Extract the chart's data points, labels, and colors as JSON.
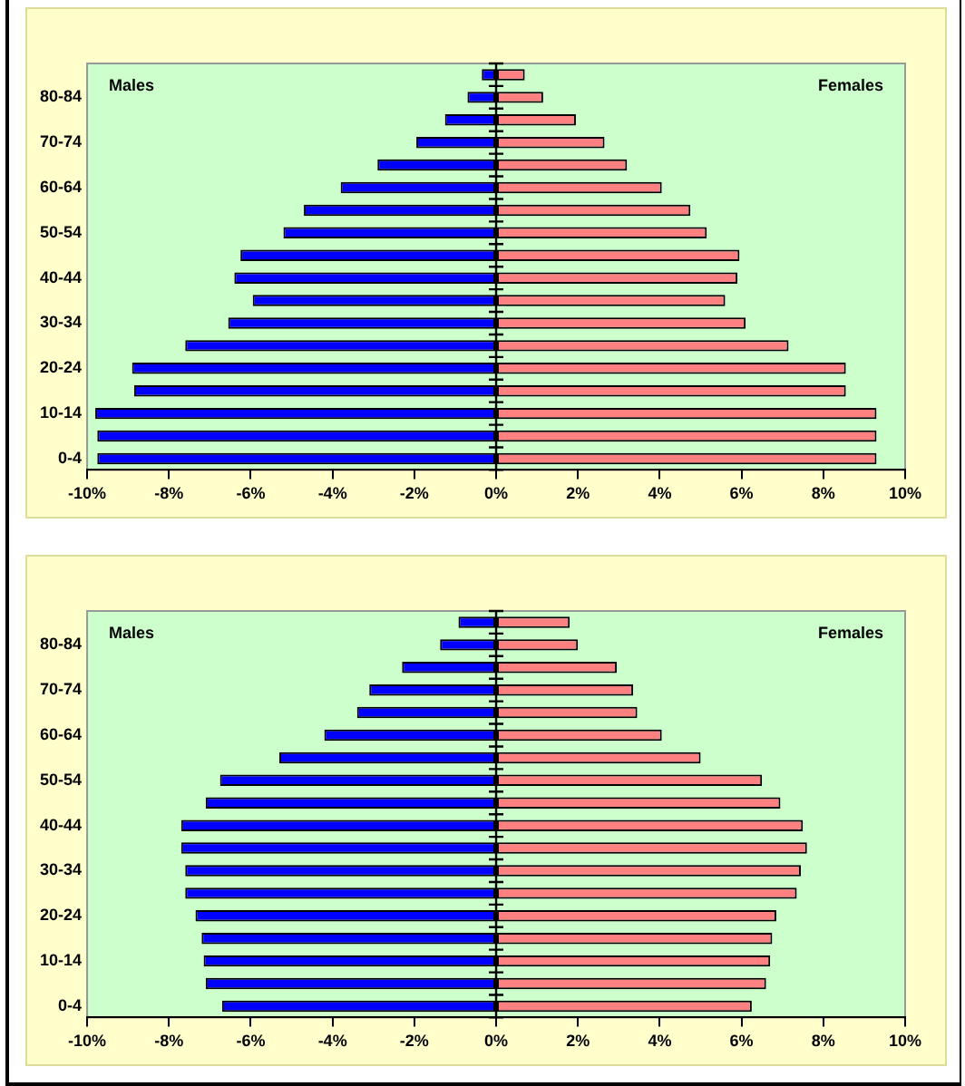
{
  "chart_data": [
    {
      "type": "bar",
      "orientation": "horizontal",
      "stacked": true,
      "grid": false,
      "legend": false,
      "categories": [
        null,
        "80-84",
        null,
        "70-74",
        null,
        "60-64",
        null,
        "50-54",
        null,
        "40-44",
        null,
        "30-34",
        null,
        "20-24",
        null,
        "10-14",
        null,
        "0-4"
      ],
      "annotations": [
        "Males",
        "Females"
      ],
      "series": [
        {
          "color": "#0000ff",
          "values": [
            -0.35,
            -0.7,
            -1.25,
            -1.95,
            -2.9,
            -3.8,
            -4.7,
            -5.2,
            -6.25,
            -6.4,
            -5.95,
            -6.55,
            -7.6,
            -8.9,
            -8.85,
            -9.8,
            -9.75,
            -9.75
          ]
        },
        {
          "color": "#ff8080",
          "values": [
            0.7,
            1.15,
            1.95,
            2.65,
            3.2,
            4.05,
            4.75,
            5.15,
            5.95,
            5.9,
            5.6,
            6.1,
            7.15,
            8.55,
            8.55,
            9.3,
            9.3,
            9.3
          ]
        }
      ],
      "xlim": [
        -10,
        10
      ],
      "xticks": [
        {
          "value": -10,
          "label": "-10%"
        },
        {
          "value": -8,
          "label": "-8%"
        },
        {
          "value": -6,
          "label": "-6%"
        },
        {
          "value": -4,
          "label": "-4%"
        },
        {
          "value": -2,
          "label": "-2%"
        },
        {
          "value": 0,
          "label": "0%"
        },
        {
          "value": 2,
          "label": "2%"
        },
        {
          "value": 4,
          "label": "4%"
        },
        {
          "value": 6,
          "label": "6%"
        },
        {
          "value": 8,
          "label": "8%"
        },
        {
          "value": 10,
          "label": "10%"
        }
      ],
      "ref_lines": [
        {
          "axis": "x",
          "value": 0,
          "color": "#000000"
        }
      ]
    },
    {
      "type": "bar",
      "orientation": "horizontal",
      "stacked": true,
      "grid": false,
      "legend": false,
      "categories": [
        null,
        "80-84",
        null,
        "70-74",
        null,
        "60-64",
        null,
        "50-54",
        null,
        "40-44",
        null,
        "30-34",
        null,
        "20-24",
        null,
        "10-14",
        null,
        "0-4"
      ],
      "annotations": [
        "Males",
        "Females"
      ],
      "series": [
        {
          "color": "#0000ff",
          "values": [
            -0.92,
            -1.37,
            -2.3,
            -3.1,
            -3.4,
            -4.2,
            -5.3,
            -6.75,
            -7.1,
            -7.7,
            -7.7,
            -7.6,
            -7.6,
            -7.35,
            -7.2,
            -7.15,
            -7.1,
            -6.7
          ]
        },
        {
          "color": "#ff8080",
          "values": [
            1.8,
            2.0,
            2.95,
            3.35,
            3.45,
            4.05,
            5.0,
            6.5,
            6.95,
            7.5,
            7.6,
            7.45,
            7.35,
            6.85,
            6.75,
            6.7,
            6.6,
            6.25
          ]
        }
      ],
      "xlim": [
        -10,
        10
      ],
      "xticks": [
        {
          "value": -10,
          "label": "-10%"
        },
        {
          "value": -8,
          "label": "-8%"
        },
        {
          "value": -6,
          "label": "-6%"
        },
        {
          "value": -4,
          "label": "-4%"
        },
        {
          "value": -2,
          "label": "-2%"
        },
        {
          "value": 0,
          "label": "0%"
        },
        {
          "value": 2,
          "label": "2%"
        },
        {
          "value": 4,
          "label": "4%"
        },
        {
          "value": 6,
          "label": "6%"
        },
        {
          "value": 8,
          "label": "8%"
        },
        {
          "value": 10,
          "label": "10%"
        }
      ],
      "ref_lines": [
        {
          "axis": "x",
          "value": 0,
          "color": "#000000"
        }
      ]
    }
  ]
}
